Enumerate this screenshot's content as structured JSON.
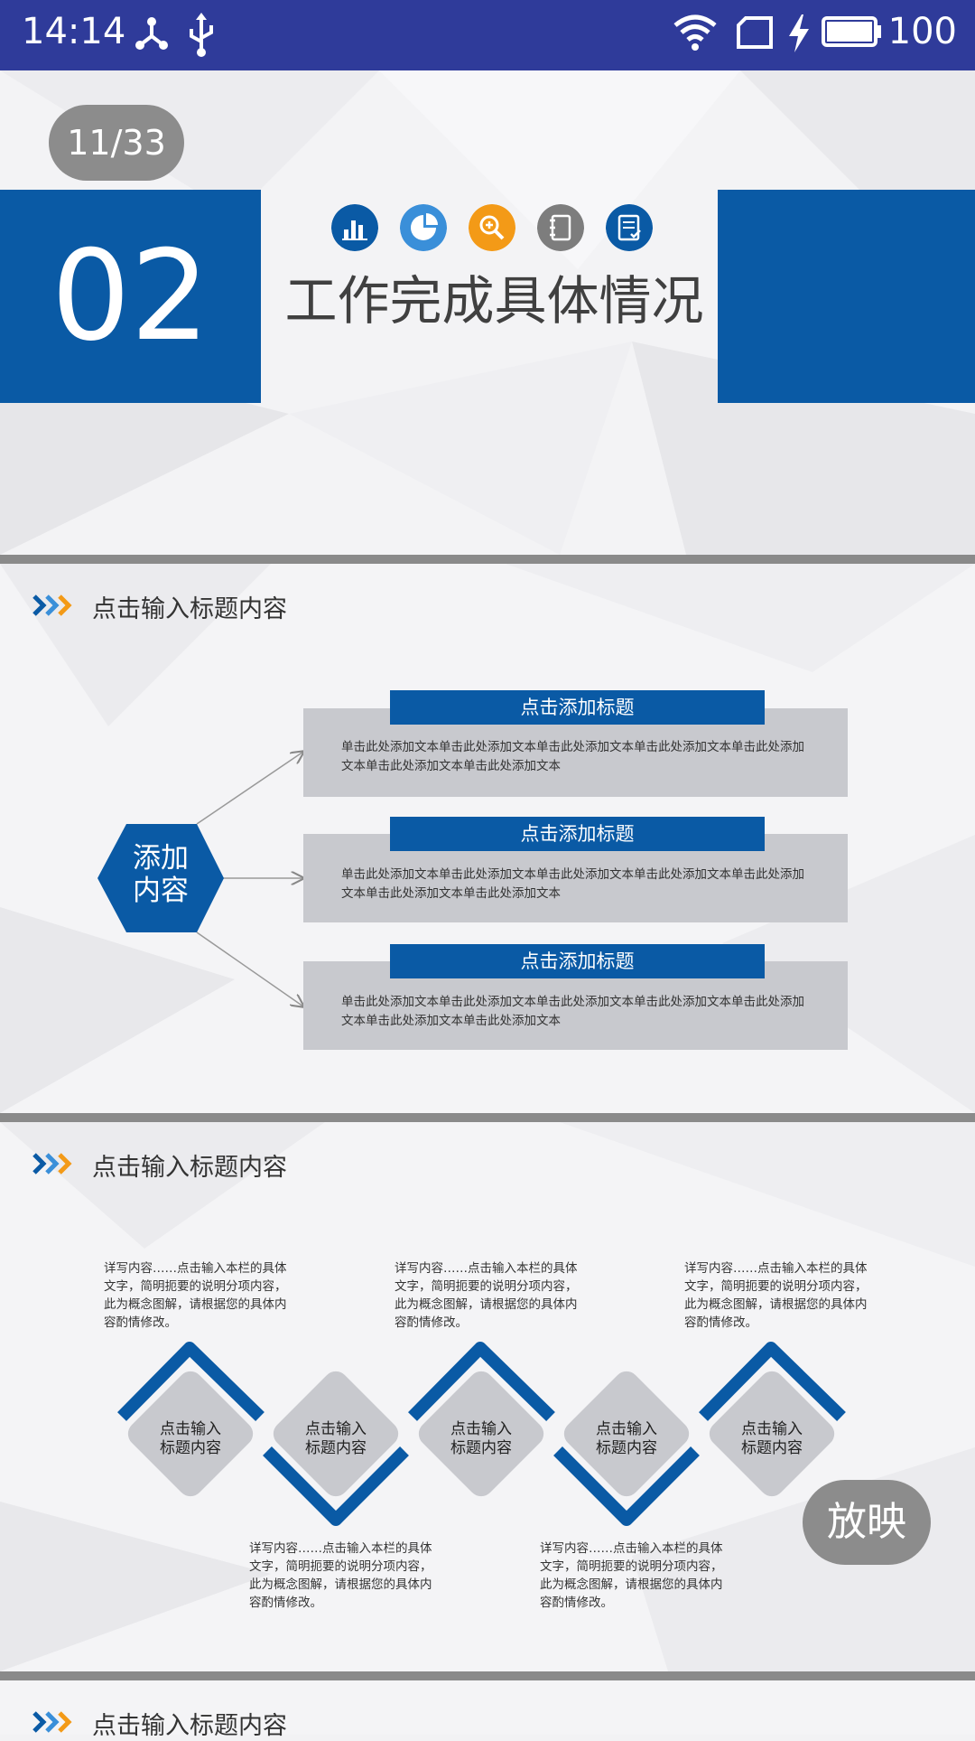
{
  "status_bar": {
    "time": "14:14",
    "battery": "100",
    "background": "#2f3b9a"
  },
  "slide_counter": "11/33",
  "cover": {
    "number": "02",
    "title": "工作完成具体情况",
    "icons": [
      "bar-chart-icon",
      "pie-chart-icon",
      "zoom-in-icon",
      "notebook-icon",
      "checklist-icon"
    ],
    "icon_colors": [
      "#0a5aa5",
      "#3a8fd9",
      "#f39a17",
      "#7d7d7d",
      "#0a5aa5"
    ],
    "accent": "#0a5aa5"
  },
  "slide2": {
    "title": "点击输入标题内容",
    "hex_label_line1": "添加",
    "hex_label_line2": "内容",
    "cards": [
      {
        "head": "点击添加标题",
        "body": "单击此处添加文本单击此处添加文本单击此处添加文本单击此处添加文本单击此处添加文本单击此处添加文本单击此处添加文本"
      },
      {
        "head": "点击添加标题",
        "body": "单击此处添加文本单击此处添加文本单击此处添加文本单击此处添加文本单击此处添加文本单击此处添加文本单击此处添加文本"
      },
      {
        "head": "点击添加标题",
        "body": "单击此处添加文本单击此处添加文本单击此处添加文本单击此处添加文本单击此处添加文本单击此处添加文本单击此处添加文本"
      }
    ]
  },
  "slide3": {
    "title": "点击输入标题内容",
    "description": "详写内容……点击输入本栏的具体文字，简明扼要的说明分项内容，此为概念图解，请根据您的具体内容酌情修改。",
    "diamonds": [
      {
        "line1": "点击输入",
        "line2": "标题内容"
      },
      {
        "line1": "点击输入",
        "line2": "标题内容"
      },
      {
        "line1": "点击输入",
        "line2": "标题内容"
      },
      {
        "line1": "点击输入",
        "line2": "标题内容"
      },
      {
        "line1": "点击输入",
        "line2": "标题内容"
      }
    ]
  },
  "slide4": {
    "title": "点击输入标题内容"
  },
  "play_button": "放映"
}
